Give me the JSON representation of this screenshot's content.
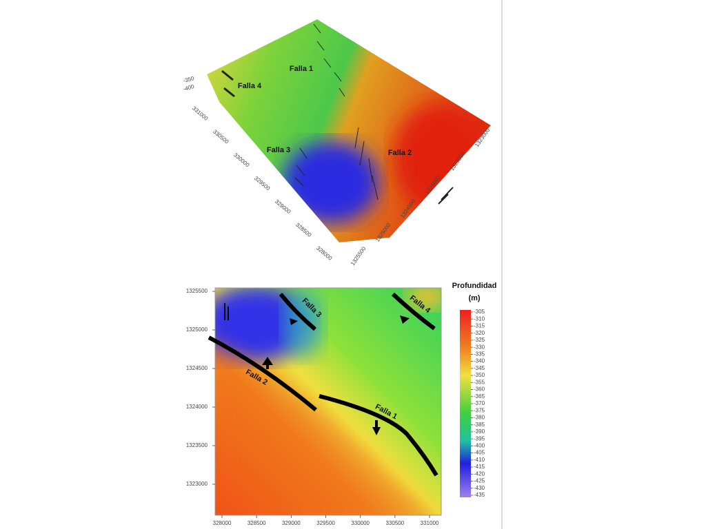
{
  "top_view": {
    "z_ticks": [
      -350,
      -400
    ],
    "y_ticks": [
      331000,
      330500,
      330000,
      329500,
      329000,
      328500,
      328000
    ],
    "x_ticks": [
      1325500,
      1325000,
      1324500,
      1324000,
      1323500,
      1323000
    ],
    "faults": [
      "Falla 1",
      "Falla 4",
      "Falla 3",
      "Falla 2"
    ]
  },
  "map": {
    "y_ticks": [
      1325500,
      1325000,
      1324500,
      1324000,
      1323500,
      1323000
    ],
    "x_ticks": [
      328000,
      328500,
      329000,
      329500,
      330000,
      330500,
      331000
    ],
    "faults": [
      "Falla 3",
      "Falla 4",
      "Falla 2",
      "Falla 1"
    ],
    "colorbar": {
      "title": [
        "Profundidad",
        "(m)"
      ],
      "ticks": [
        -305,
        -310,
        -315,
        -320,
        -325,
        -330,
        -335,
        -340,
        -345,
        -350,
        -355,
        -360,
        -365,
        -370,
        -375,
        -380,
        -385,
        -390,
        -395,
        -400,
        -405,
        -410,
        -415,
        -420,
        -425,
        -430,
        -435
      ]
    }
  }
}
